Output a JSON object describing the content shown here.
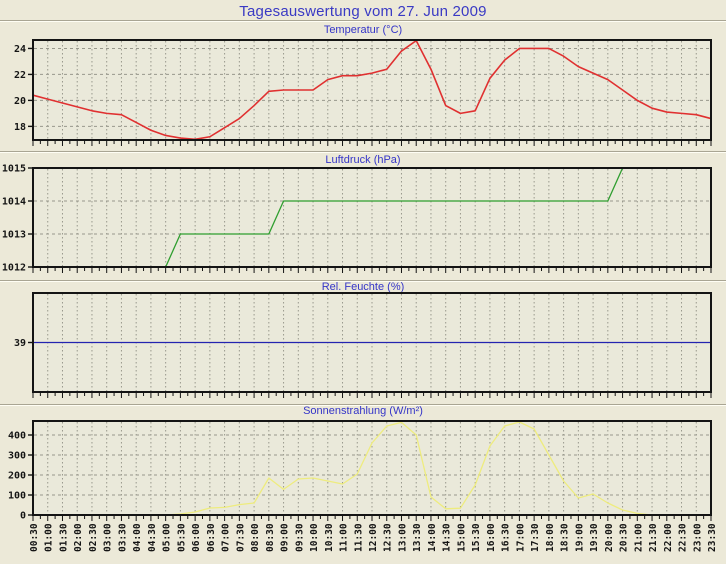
{
  "header": {
    "title": "Tagesauswertung vom 27. Jun 2009"
  },
  "colors": {
    "page_bg": "#ece9d8",
    "plot_bg": "#eae9da",
    "grid": "#98988c",
    "axis": "#141414",
    "title_blue": "#3535c8",
    "temperature_line": "#e03030",
    "pressure_line": "#2f9e2f",
    "humidity_line": "#2424b0",
    "solar_line": "#eeec7e"
  },
  "x_categories": [
    "00:30",
    "01:00",
    "01:30",
    "02:00",
    "02:30",
    "03:00",
    "03:30",
    "04:00",
    "04:30",
    "05:00",
    "05:30",
    "06:00",
    "06:30",
    "07:00",
    "07:30",
    "08:00",
    "08:30",
    "09:00",
    "09:30",
    "10:00",
    "10:30",
    "11:00",
    "11:30",
    "12:00",
    "12:30",
    "13:00",
    "13:30",
    "14:00",
    "14:30",
    "15:00",
    "15:30",
    "16:00",
    "16:30",
    "17:00",
    "17:30",
    "18:00",
    "18:30",
    "19:00",
    "19:30",
    "20:00",
    "20:30",
    "21:00",
    "21:30",
    "22:00",
    "22:30",
    "23:00",
    "23:30"
  ],
  "chart_data": [
    {
      "type": "line",
      "title": "Temperatur (°C)",
      "series_color": "#e03030",
      "ylim": [
        16.95,
        24.65
      ],
      "yticks": [
        18,
        20,
        22,
        24
      ],
      "values": [
        20.4,
        20.1,
        19.8,
        19.5,
        19.2,
        19.0,
        18.9,
        18.3,
        17.7,
        17.3,
        17.1,
        17.0,
        17.2,
        17.9,
        18.6,
        19.6,
        20.7,
        20.8,
        20.8,
        20.8,
        21.6,
        21.9,
        21.9,
        22.1,
        22.4,
        23.8,
        24.6,
        22.4,
        19.6,
        19.0,
        19.2,
        21.7,
        23.1,
        24.0,
        24.0,
        24.0,
        23.4,
        22.6,
        22.1,
        21.6,
        20.8,
        20.0,
        19.4,
        19.1,
        19.0,
        18.9,
        18.6
      ]
    },
    {
      "type": "line",
      "title": "Luftdruck (hPa)",
      "series_color": "#2f9e2f",
      "ylim": [
        1012,
        1015
      ],
      "yticks": [
        1012,
        1013,
        1014,
        1015
      ],
      "values": [
        1012,
        1012,
        1012,
        1012,
        1012,
        1012,
        1012,
        1012,
        1012,
        1012,
        1013,
        1013,
        1013,
        1013,
        1013,
        1013,
        1013,
        1014,
        1014,
        1014,
        1014,
        1014,
        1014,
        1014,
        1014,
        1014,
        1014,
        1014,
        1014,
        1014,
        1014,
        1014,
        1014,
        1014,
        1014,
        1014,
        1014,
        1014,
        1014,
        1014,
        1015,
        1015,
        1015,
        1015,
        1015,
        1015,
        1015
      ]
    },
    {
      "type": "line",
      "title": "Rel. Feuchte (%)",
      "series_color": "#2424b0",
      "ylim": [
        38,
        40
      ],
      "yticks": [
        39
      ],
      "values": [
        39,
        39,
        39,
        39,
        39,
        39,
        39,
        39,
        39,
        39,
        39,
        39,
        39,
        39,
        39,
        39,
        39,
        39,
        39,
        39,
        39,
        39,
        39,
        39,
        39,
        39,
        39,
        39,
        39,
        39,
        39,
        39,
        39,
        39,
        39,
        39,
        39,
        39,
        39,
        39,
        39,
        39,
        39,
        39,
        39,
        39,
        39
      ]
    },
    {
      "type": "line",
      "title": "Sonnenstrahlung (W/m²)",
      "series_color": "#eeec7e",
      "ylim": [
        0,
        470
      ],
      "yticks": [
        0,
        100,
        200,
        300,
        400
      ],
      "values": [
        0,
        0,
        0,
        0,
        0,
        0,
        0,
        0,
        0,
        0,
        5,
        15,
        35,
        38,
        52,
        60,
        185,
        128,
        180,
        185,
        170,
        155,
        205,
        360,
        445,
        463,
        400,
        90,
        31,
        34,
        150,
        345,
        445,
        465,
        430,
        300,
        170,
        85,
        105,
        60,
        25,
        8,
        0,
        0,
        0,
        0,
        0
      ]
    }
  ]
}
